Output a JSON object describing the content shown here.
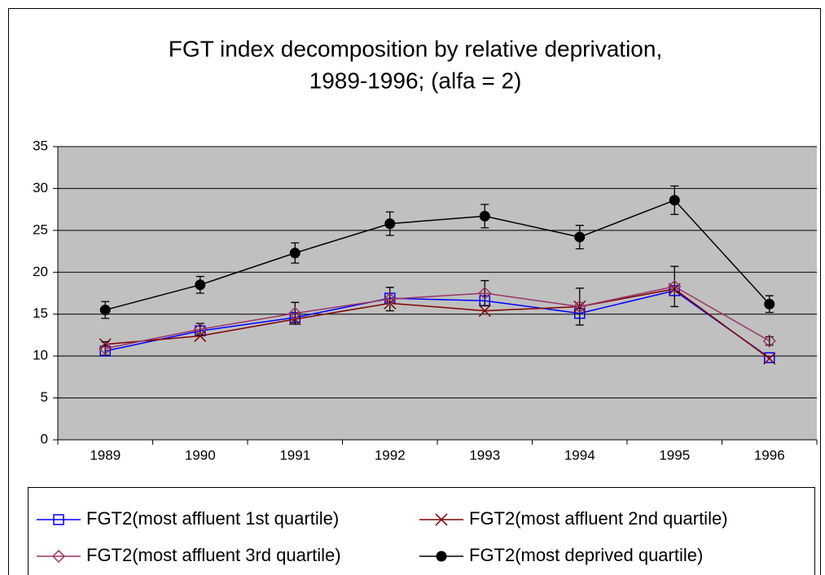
{
  "chart_data": {
    "type": "line",
    "title": "FGT index decomposition by relative deprivation,",
    "subtitle": "1989-1996; (alfa = 2)",
    "categories": [
      "1989",
      "1990",
      "1991",
      "1992",
      "1993",
      "1994",
      "1995",
      "1996"
    ],
    "ylim": [
      0,
      35
    ],
    "yticks": [
      0,
      5,
      10,
      15,
      20,
      25,
      30,
      35
    ],
    "grid": true,
    "series": [
      {
        "name": "FGT2(most affluent 1st quartile)",
        "color": "#0000ff",
        "marker": "square",
        "values": [
          10.6,
          13.0,
          14.6,
          16.9,
          16.6,
          15.1,
          17.8,
          9.8
        ]
      },
      {
        "name": "FGT2(most affluent 2nd quartile)",
        "color": "#800000",
        "marker": "x",
        "values": [
          11.4,
          12.4,
          14.4,
          16.3,
          15.4,
          15.9,
          18.0,
          9.7
        ]
      },
      {
        "name": "FGT2(most affluent 3rd quartile)",
        "color": "#993366",
        "marker": "diamond",
        "values": [
          10.9,
          13.2,
          15.1,
          16.8,
          17.5,
          15.9,
          18.3,
          11.8
        ],
        "errors": [
          0.8,
          0.7,
          1.3,
          1.4,
          1.5,
          2.2,
          2.4,
          0.5
        ]
      },
      {
        "name": "FGT2(most deprived quartile)",
        "color": "#000000",
        "marker": "circle",
        "values": [
          15.5,
          18.5,
          22.3,
          25.8,
          26.7,
          24.2,
          28.6,
          16.2
        ],
        "errors": [
          1.0,
          1.0,
          1.2,
          1.4,
          1.4,
          1.4,
          1.7,
          1.0
        ]
      }
    ]
  }
}
